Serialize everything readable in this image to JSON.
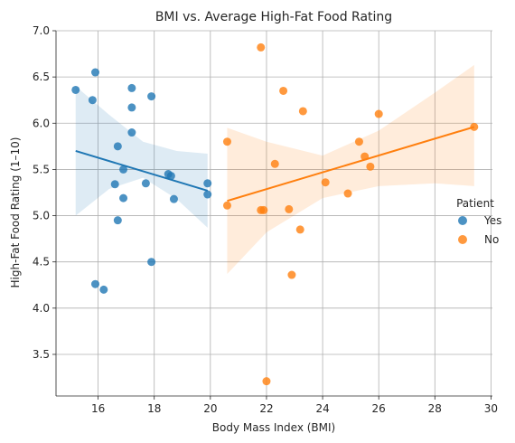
{
  "chart_data": {
    "type": "scatter",
    "title": "BMI vs. Average High-Fat Food Rating",
    "xlabel": "Body Mass Index (BMI)",
    "ylabel": "High-Fat Food Rating (1–10)",
    "xlim": [
      14.5,
      30.05
    ],
    "ylim": [
      3.05,
      7.0
    ],
    "xticks": [
      16,
      18,
      20,
      22,
      24,
      26,
      28,
      30
    ],
    "yticks": [
      3.5,
      4.0,
      4.5,
      5.0,
      5.5,
      6.0,
      6.5,
      7.0
    ],
    "grid": true,
    "legend": {
      "title": "Patient",
      "placement": "right"
    },
    "series": [
      {
        "name": "Yes",
        "color": "#1f77b4",
        "x": [
          15.2,
          15.9,
          15.8,
          17.2,
          17.9,
          17.2,
          17.2,
          16.7,
          16.9,
          16.6,
          17.7,
          18.5,
          18.6,
          19.9,
          19.9,
          16.9,
          18.7,
          16.7,
          17.9,
          15.9,
          16.2
        ],
        "y": [
          6.36,
          6.55,
          6.25,
          6.38,
          6.29,
          6.17,
          5.9,
          5.75,
          5.5,
          5.34,
          5.35,
          5.45,
          5.43,
          5.35,
          5.23,
          5.19,
          5.18,
          4.95,
          4.5,
          4.26,
          4.2
        ],
        "fit": {
          "x": [
            15.2,
            19.9
          ],
          "y": [
            5.7,
            5.27
          ]
        },
        "ci": {
          "x": [
            15.2,
            16.4,
            17.6,
            18.8,
            19.9
          ],
          "lower": [
            5.0,
            5.29,
            5.41,
            5.18,
            4.87
          ],
          "upper": [
            6.4,
            6.09,
            5.8,
            5.7,
            5.67
          ]
        }
      },
      {
        "name": "No",
        "color": "#ff7f0e",
        "x": [
          21.8,
          22.6,
          23.3,
          26.0,
          20.6,
          25.3,
          25.5,
          22.3,
          25.7,
          24.1,
          24.9,
          20.6,
          21.8,
          21.9,
          22.8,
          23.2,
          22.9,
          22.0,
          29.4
        ],
        "y": [
          6.82,
          6.35,
          6.13,
          6.1,
          5.8,
          5.8,
          5.64,
          5.56,
          5.53,
          5.36,
          5.24,
          5.11,
          5.06,
          5.06,
          5.07,
          4.85,
          4.36,
          3.21,
          5.96
        ],
        "fit": {
          "x": [
            20.6,
            29.4
          ],
          "y": [
            5.16,
            5.96
          ]
        },
        "ci": {
          "x": [
            20.6,
            22.0,
            24.0,
            26.0,
            28.0,
            29.4
          ],
          "lower": [
            4.37,
            4.82,
            5.19,
            5.32,
            5.35,
            5.32
          ],
          "upper": [
            5.95,
            5.8,
            5.65,
            5.92,
            6.33,
            6.63
          ]
        }
      }
    ]
  }
}
